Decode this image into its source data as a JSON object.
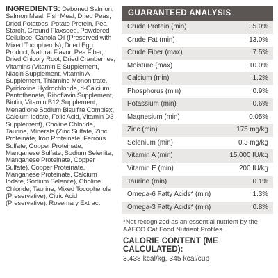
{
  "ingredients": {
    "label": "INGREDIENTS:",
    "text": "Deboned Salmon, Salmon Meal, Fish Meal, Dried Peas, Dried Potatoes, Potato Protein, Pea Starch, Ground Flaxseed, Powdered Cellulose, Canola Oil (Preserved with Mixed Tocopherols), Dried Egg Product, Natural Flavor, Pea Fiber, Dried Chicory Root, Dried Cranberries, Vitamins (Vitamin E Supplement, Niacin Supplement, Vitamin A Supplement, Thiamine Mononitrate, Pyridoxine Hydrochloride, d-Calcium Pantothenate, Riboflavin Supplement, Biotin, Vitamin B12 Supplement, Menadione Sodium Bisulfite Complex, Calcium Iodate, Folic Acid, Vitamin D3 Supplement), Choline Chloride, Taurine, Minerals (Zinc Sulfate, Zinc Proteinate, Iron Proteinate, Ferrous Sulfate, Copper Proteinate, Manganese Sulfate, Sodium Selenite, Manganese Proteinate, Copper Sulfate), Copper Proteinate, Manganese Proteinate, Calcium Iodate, Sodium Selenite), Choline Chloride, Taurine, Mixed Tocopherols (Preservative), Citric Acid (Preservative), Rosemary Extract"
  },
  "guaranteed_analysis": {
    "title": "GUARANTEED ANALYSIS",
    "rows": [
      {
        "name": "Crude Protein (min)",
        "value": "35.0%"
      },
      {
        "name": "Crude Fat (min)",
        "value": "13.0%"
      },
      {
        "name": "Crude Fiber (max)",
        "value": "7.5%"
      },
      {
        "name": "Moisture (max)",
        "value": "10.0%"
      },
      {
        "name": "Calcium (min)",
        "value": "1.2%"
      },
      {
        "name": "Phosphorus (min)",
        "value": "0.9%"
      },
      {
        "name": "Potassium (min)",
        "value": "0.6%"
      },
      {
        "name": "Magnesium (min)",
        "value": "0.05%"
      },
      {
        "name": "Zinc (min)",
        "value": "175 mg/kg"
      },
      {
        "name": "Selenium (min)",
        "value": "0.3 mg/kg"
      },
      {
        "name": "Vitamin A (min)",
        "value": "15,000 IU/kg"
      },
      {
        "name": "Vitamin E (min)",
        "value": "200 IU/kg"
      },
      {
        "name": "Taurine (min)",
        "value": "0.1%"
      },
      {
        "name": "Omega-6 Fatty Acids* (min)",
        "value": "1.3%"
      },
      {
        "name": "Omega-3 Fatty Acids* (min)",
        "value": "0.8%"
      }
    ],
    "footnote": "*Not recognized as an essential nutrient by the AAFCO Cat Food Nutrient Profiles."
  },
  "calorie_content": {
    "title": "CALORIE CONTENT (ME CALCULATED):",
    "value": "3,438 kcal/kg, 345 kcal/cup"
  },
  "colors": {
    "header_bg": "#5b5554",
    "row_shade": "#e9e8e7",
    "text": "#3a3a3a"
  }
}
